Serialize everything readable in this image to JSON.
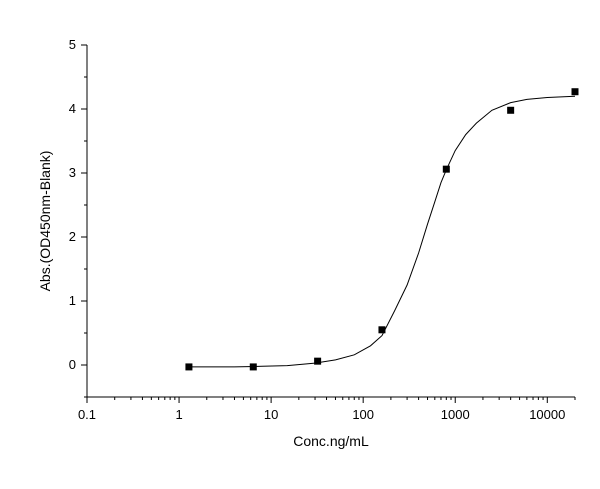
{
  "chart_data": {
    "type": "scatter",
    "xlabel": "Conc.ng/mL",
    "ylabel": "Abs.(OD450nm-Blank)",
    "xscale": "log",
    "xlim": [
      0.1,
      20000
    ],
    "ylim": [
      -0.5,
      5
    ],
    "xticks": [
      0.1,
      1,
      10,
      100,
      1000,
      10000
    ],
    "xtick_labels": [
      "0.1",
      "1",
      "10",
      "100",
      "1000",
      "10000"
    ],
    "yticks": [
      0,
      1,
      2,
      3,
      4,
      5
    ],
    "ytick_labels": [
      "0",
      "1",
      "2",
      "3",
      "4",
      "5"
    ],
    "grid": false,
    "series": [
      {
        "x": [
          1.28,
          6.4,
          32,
          160,
          800,
          4000,
          20000
        ],
        "y": [
          -0.03,
          -0.03,
          0.06,
          0.55,
          3.06,
          3.98,
          4.27
        ]
      }
    ],
    "fit_curve": {
      "x": [
        1.28,
        2,
        4,
        8,
        15,
        30,
        50,
        80,
        120,
        160,
        220,
        300,
        400,
        500,
        600,
        700,
        800,
        1000,
        1300,
        1700,
        2500,
        4000,
        6000,
        10000,
        20000
      ],
      "y": [
        -0.03,
        -0.03,
        -0.03,
        -0.02,
        -0.01,
        0.03,
        0.08,
        0.16,
        0.3,
        0.46,
        0.85,
        1.25,
        1.75,
        2.2,
        2.55,
        2.85,
        3.05,
        3.35,
        3.6,
        3.78,
        3.98,
        4.1,
        4.15,
        4.18,
        4.2
      ]
    }
  }
}
